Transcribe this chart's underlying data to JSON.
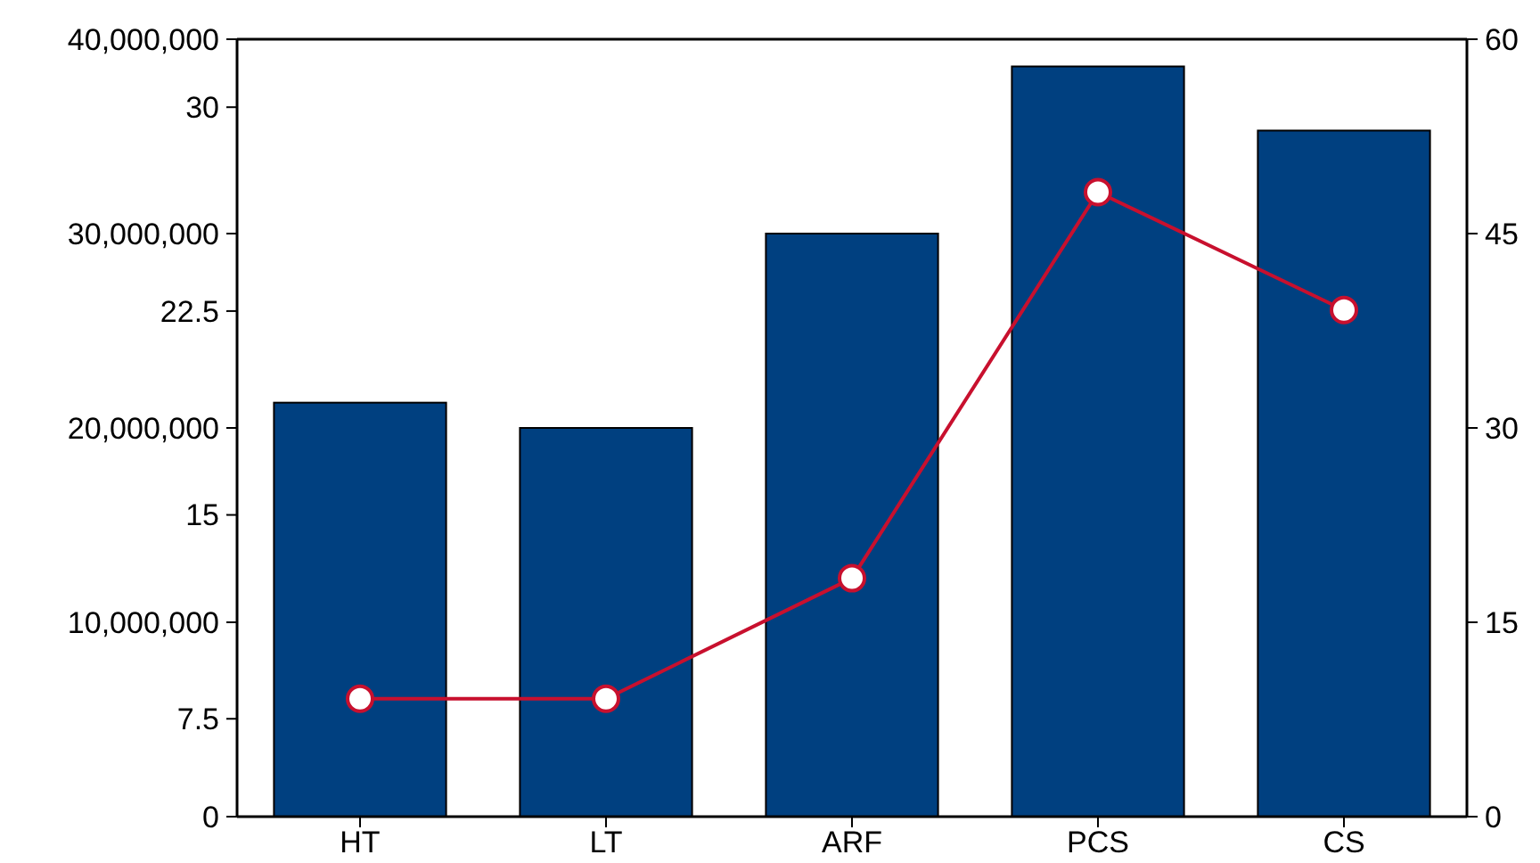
{
  "chart_data": {
    "type": "bar",
    "categories": [
      "HT",
      "LT",
      "ARF",
      "PCS",
      "CS"
    ],
    "series": [
      {
        "color": "#004080",
        "values": [
          21300000,
          20000000,
          30000000,
          38600000,
          35300000
        ]
      },
      {
        "type": "line",
        "axis": "y2",
        "color": "#c8102e",
        "values": [
          9.1,
          9.1,
          18.4,
          48.2,
          39.1
        ]
      }
    ],
    "ylim": [
      0,
      40000000
    ],
    "yticks": [
      {
        "value": 0,
        "label": "0"
      },
      {
        "value": 10000000,
        "label": "10,000,000"
      },
      {
        "value": 20000000,
        "label": "20,000,000"
      },
      {
        "value": 30000000,
        "label": "30,000,000"
      },
      {
        "value": 40000000,
        "label": "40,000,000"
      }
    ],
    "y2lim": [
      0,
      60
    ],
    "y2ticks": [
      0,
      15,
      30,
      45,
      60
    ],
    "y3lim": [
      3.9,
      32.5
    ],
    "y3ticks": [
      7.5,
      15,
      22.5,
      30
    ],
    "marker": "circle",
    "grid": false
  }
}
